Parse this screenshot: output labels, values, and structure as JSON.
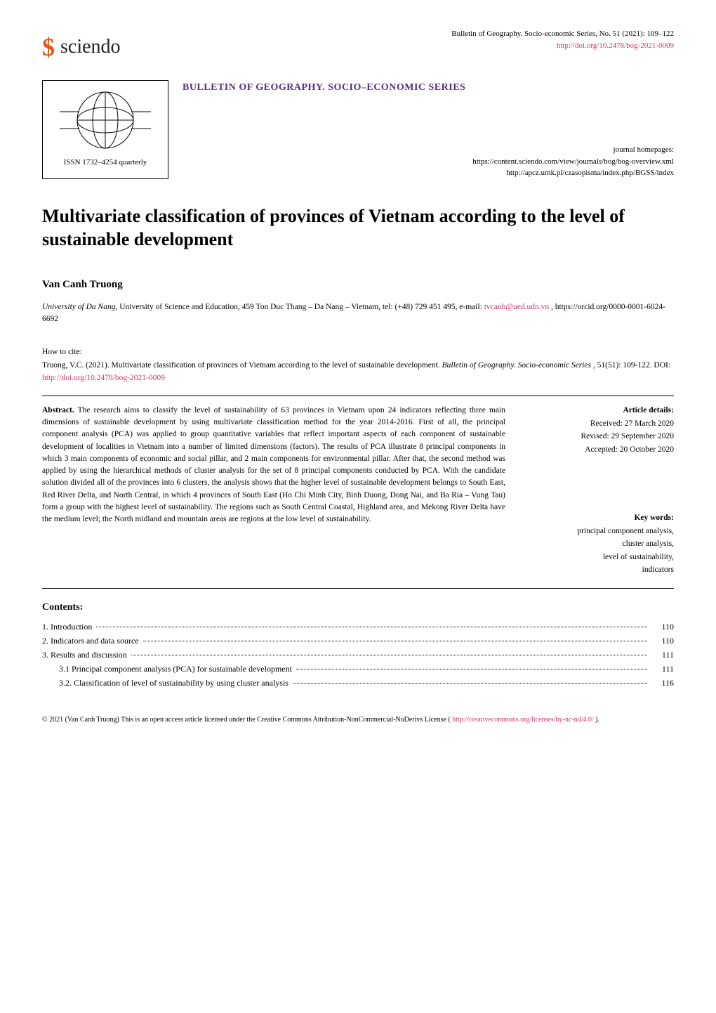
{
  "header": {
    "logo_letter": "$",
    "logo_word": "sciendo",
    "bulletin_line": "Bulletin of Geography. Socio-economic Series, No. 51 (2021): 109–122",
    "doi_link": "http://doi.org/10.2478/bog-2021-0009"
  },
  "journal": {
    "title_bar": "BULLETIN OF GEOGRAPHY. SOCIO–ECONOMIC SERIES",
    "issn_text": "ISSN 1732–4254 quarterly",
    "homepages_label": "journal homepages:",
    "homepage1": "https://content.sciendo.com/view/journals/bog/bog-overview.xml",
    "homepage2": "http://apcz.umk.pl/czasopisma/index.php/BGSS/index"
  },
  "article": {
    "title": "Multivariate classification of provinces of Vietnam according to the level of sustainable development",
    "author": "Van Canh Truong",
    "affiliation_italic": "University of Da Nang,",
    "affiliation_rest": " University of Science and Education, 459 Ton Duc Thang – Da Nang – Vietnam, tel: (+48) 729 451 495, e-mail: ",
    "email": "tvcanh@ued.udn.vn",
    "orcid": ", https://orcid.org/0000-0001-6024-6692"
  },
  "howtocite": {
    "label": "How to cite:",
    "text_before": "Truong, V.C. (2021). Multivariate classification of provinces of Vietnam according to the level of sustainable development. ",
    "journal_italic": "Bulletin of Geography. Socio-economic Series",
    "text_middle": ", 51(51): 109-122. DOI: ",
    "doi": "http://doi.org/10.2478/bog-2021-0009"
  },
  "abstract": {
    "label": "Abstract.",
    "text": " The research aims to classify the level of sustainability of 63 provinces in Vietnam upon 24 indicators reflecting three main dimensions of sustainable development by using multivariate classification method for the year 2014-2016. First of all, the principal component analysis (PCA) was applied to group quantitative variables that reflect important aspects of each component of sustainable development of localities in Vietnam into a number of limited dimensions (factors). The results of PCA illustrate 8 principal components in which 3 main components of economic and social pillar, and 2 main components for environmental pillar. After that, the second method was applied by using the hierarchical methods of cluster analysis for the set of 8 principal components conducted by PCA. With the candidate solution divided all of the provinces into 6 clusters, the analysis shows that the higher level of sustainable development belongs to South East, Red River Delta, and North Central, in which 4 provinces of South East (Ho Chi Minh City, Binh Duong, Dong Nai, and Ba Ria – Vung Tau) form a group with the highest level of sustainability. The regions such as South Central Coastal, Highland area, and Mekong River Delta have the medium level; the North midland and mountain areas are regions at the low level of sustainability."
  },
  "details": {
    "heading": "Article details:",
    "received": "Received: 27 March 2020",
    "revised": "Revised: 29 September 2020",
    "accepted": "Accepted: 20 October 2020"
  },
  "keywords": {
    "heading": "Key words:",
    "kw1": "principal component analysis,",
    "kw2": "cluster analysis,",
    "kw3": "level of sustainability,",
    "kw4": "indicators"
  },
  "contents": {
    "heading": "Contents:",
    "items": [
      {
        "title": "1. Introduction ",
        "page": "110",
        "indent": false
      },
      {
        "title": "2. Indicators and data source",
        "page": "110",
        "indent": false
      },
      {
        "title": "3. Results and discussion ",
        "page": "111",
        "indent": false
      },
      {
        "title": "3.1 Principal component analysis (PCA) for sustainable development ",
        "page": "111",
        "indent": true
      },
      {
        "title": "3.2. Classification of level of sustainability by using cluster analysis ",
        "page": "116",
        "indent": true
      }
    ]
  },
  "license": {
    "text_before": "© 2021 (Van Canh Truong) This is an open access article licensed under the Creative Commons Attribution-NonCommercial-NoDerivs License (",
    "link": "http://creativecommons.org/licenses/by-nc-nd/4.0/",
    "text_after": ")."
  },
  "colors": {
    "magenta": "#d6336c",
    "purple": "#5a2d82",
    "orange": "#e85412",
    "black": "#000000"
  }
}
